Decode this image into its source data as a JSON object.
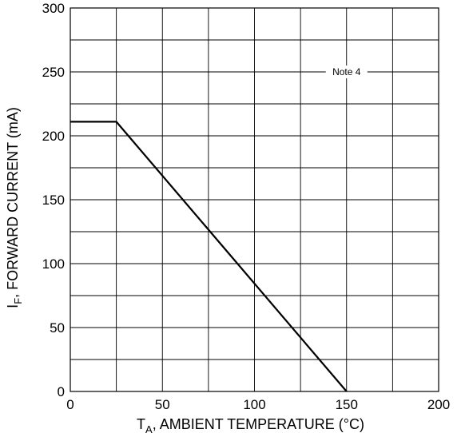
{
  "chart_data": {
    "type": "line",
    "title": "",
    "xlabel": {
      "main": "T",
      "sub": "A",
      "rest": ", AMBIENT TEMPERATURE (°C)"
    },
    "ylabel": {
      "main": "I",
      "sub": "F",
      "rest": ", FORWARD CURRENT (mA)"
    },
    "xlim": [
      0,
      200
    ],
    "ylim": [
      0,
      300
    ],
    "x_ticks": [
      "0",
      "50",
      "100",
      "150",
      "200"
    ],
    "y_ticks": [
      "0",
      "50",
      "100",
      "150",
      "200",
      "250",
      "300"
    ],
    "grid": true,
    "series": [
      {
        "x": [
          0,
          25,
          150
        ],
        "y": [
          211,
          211,
          0
        ]
      }
    ],
    "annotations": [
      {
        "text": "Note 4",
        "x": 150,
        "y": 250
      }
    ],
    "colors": {
      "line": "#000000",
      "grid": "#000000"
    }
  }
}
